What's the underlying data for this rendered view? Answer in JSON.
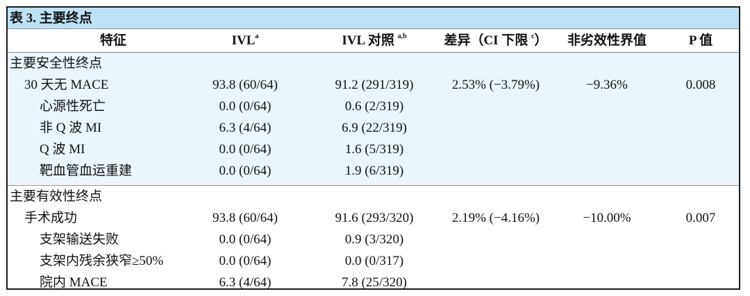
{
  "table": {
    "title": "表 3.  主要终点",
    "headers": {
      "feature": "特征",
      "ivl": "IVL",
      "ivl_sup": "a",
      "control": "IVL 对照 ",
      "control_sup": "a,b",
      "diff": "差异（CI 下限 ",
      "diff_sup": "c",
      "diff_close": "）",
      "noninferiority": "非劣效性界值",
      "p": "P 值"
    },
    "safety": {
      "section_label": "主要安全性终点",
      "rows": [
        {
          "label": "30 天无 MACE",
          "ivl": "93.8 (60/64)",
          "control": "91.2 (291/319)",
          "diff": "2.53% (−3.79%)",
          "ni": "−9.36%",
          "p": "0.008"
        },
        {
          "label": "心源性死亡",
          "ivl": "0.0 (0/64)",
          "control": "0.6 (2/319)",
          "diff": "",
          "ni": "",
          "p": ""
        },
        {
          "label": "非 Q 波 MI",
          "ivl": "6.3 (4/64)",
          "control": "6.9 (22/319)",
          "diff": "",
          "ni": "",
          "p": ""
        },
        {
          "label": "Q 波 MI",
          "ivl": "0.0 (0/64)",
          "control": "1.6 (5/319)",
          "diff": "",
          "ni": "",
          "p": ""
        },
        {
          "label": "靶血管血运重建",
          "ivl": "0.0 (0/64)",
          "control": "1.9 (6/319)",
          "diff": "",
          "ni": "",
          "p": ""
        }
      ]
    },
    "efficacy": {
      "section_label": "主要有效性终点",
      "rows": [
        {
          "label": "手术成功",
          "ivl": "93.8 (60/64)",
          "control": "91.6 (293/320)",
          "diff": "2.19% (−4.16%)",
          "ni": "−10.00%",
          "p": "0.007"
        },
        {
          "label": "支架输送失败",
          "ivl": "0.0 (0/64)",
          "control": "0.9 (3/320)",
          "diff": "",
          "ni": "",
          "p": ""
        },
        {
          "label": "支架内残余狭窄≥50%",
          "ivl": "0.0 (0/64)",
          "control": "0.0 (0/317)",
          "diff": "",
          "ni": "",
          "p": ""
        },
        {
          "label": "院内 MACE",
          "ivl": "6.3 (4/64)",
          "control": "7.8 (25/320)",
          "diff": "",
          "ni": "",
          "p": ""
        }
      ]
    }
  }
}
